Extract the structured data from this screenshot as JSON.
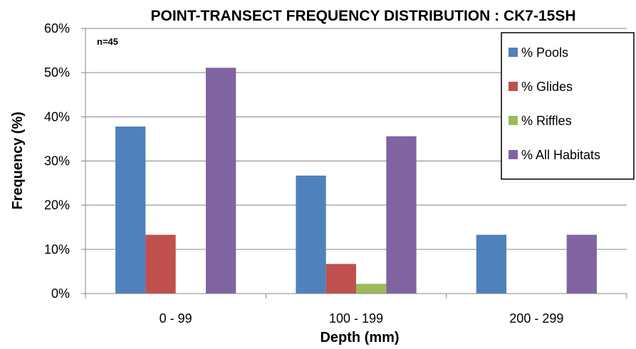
{
  "chart_data": {
    "type": "bar",
    "title": "POINT-TRANSECT FREQUENCY DISTRIBUTION : CK7-15SH",
    "xlabel": "Depth (mm)",
    "ylabel": "Frequency (%)",
    "annotation": "n=45",
    "categories": [
      "0 - 99",
      "100 - 199",
      "200 - 299"
    ],
    "ylim": [
      0,
      60
    ],
    "yticks": [
      "0%",
      "10%",
      "20%",
      "30%",
      "40%",
      "50%",
      "60%"
    ],
    "ytick_values": [
      0,
      10,
      20,
      30,
      40,
      50,
      60
    ],
    "grid": true,
    "legend_position": "top-right",
    "series": [
      {
        "name": "% Pools",
        "color": "#4F81BD",
        "values": [
          37.8,
          26.7,
          13.3
        ]
      },
      {
        "name": "% Glides",
        "color": "#C0504D",
        "values": [
          13.3,
          6.7,
          0
        ]
      },
      {
        "name": "% Riffles",
        "color": "#9BBB59",
        "values": [
          0,
          2.2,
          0
        ]
      },
      {
        "name": "% All Habitats",
        "color": "#8064A2",
        "values": [
          51.1,
          35.6,
          13.3
        ]
      }
    ]
  }
}
